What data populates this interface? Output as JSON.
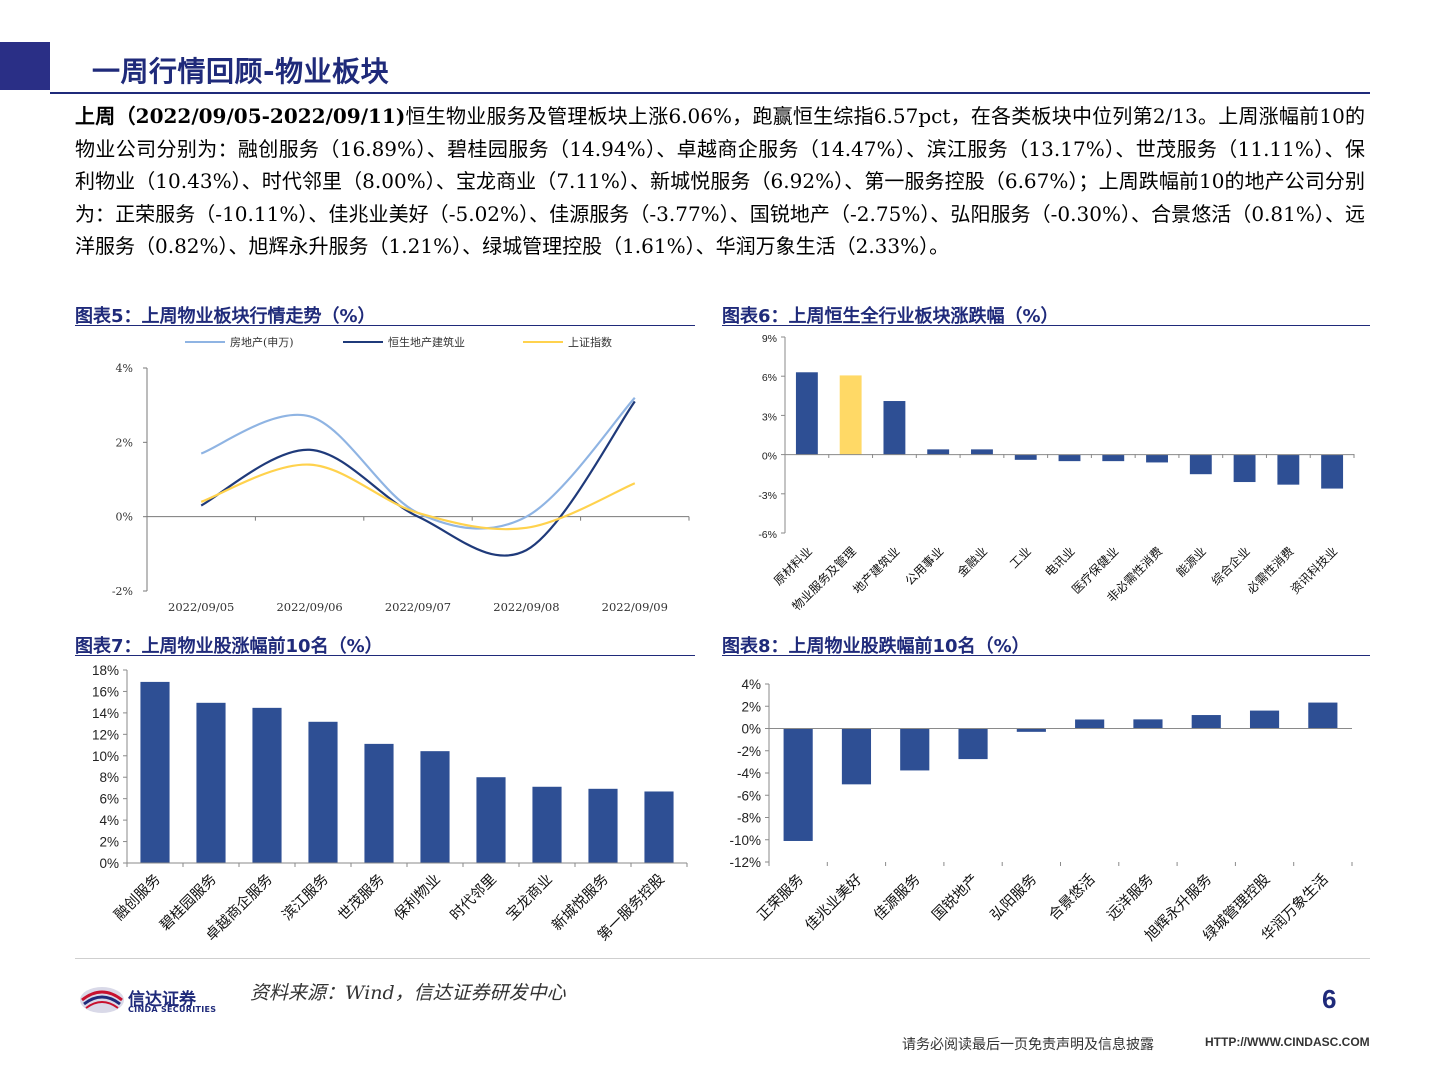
{
  "header": {
    "title": "一周行情回顾-物业板块"
  },
  "summary": {
    "lead": "上周（2022/09/05-2022/09/11)",
    "text": "恒生物业服务及管理板块上涨6.06%，跑赢恒生综指6.57pct，在各类板块中位列第2/13。上周涨幅前10的物业公司分别为：融创服务（16.89%）、碧桂园服务（14.94%）、卓越商企服务（14.47%）、滨江服务（13.17%）、世茂服务（11.11%）、保利物业（10.43%）、时代邻里（8.00%）、宝龙商业（7.11%）、新城悦服务（6.92%）、第一服务控股（6.67%）；上周跌幅前10的地产公司分别为：正荣服务（-10.11%）、佳兆业美好（-5.02%）、佳源服务（-3.77%）、国锐地产（-2.75%）、弘阳服务（-0.30%）、合景悠活（0.81%）、远洋服务（0.82%）、旭辉永升服务（1.21%）、绿城管理控股（1.61%）、华润万象生活（2.33%）。"
  },
  "figures": {
    "fig5_title": "图表5：上周物业板块行情走势（%）",
    "fig6_title": "图表6：上周恒生全行业板块涨跌幅（%）",
    "fig7_title": "图表7：上周物业股涨幅前10名（%）",
    "fig8_title": "图表8：上周物业股跌幅前10名（%）"
  },
  "colors": {
    "brand": "#1f2a7a",
    "bar": "#2e4f94",
    "bar_highlight": "#ffd966",
    "line_light": "#8fb4e3",
    "line_dark": "#1f3a7a",
    "line_yellow": "#ffd24d"
  },
  "chart_data": [
    {
      "id": "fig5",
      "type": "line",
      "x": [
        "2022/09/05",
        "2022/09/06",
        "2022/09/07",
        "2022/09/08",
        "2022/09/09"
      ],
      "series": [
        {
          "name": "房地产(申万)",
          "values": [
            1.7,
            2.7,
            0.1,
            0.0,
            3.2
          ]
        },
        {
          "name": "恒生地产建筑业",
          "values": [
            0.3,
            1.8,
            0.0,
            -0.9,
            3.1
          ]
        },
        {
          "name": "上证指数",
          "values": [
            0.4,
            1.4,
            0.1,
            -0.3,
            0.9
          ]
        }
      ],
      "yticks": [
        "4%",
        "2%",
        "0%",
        "-2%"
      ],
      "ylim": [
        -2,
        4
      ],
      "legend": "top"
    },
    {
      "id": "fig6",
      "type": "bar",
      "categories": [
        "原材料业",
        "物业服务及管理",
        "地产建筑业",
        "公用事业",
        "金融业",
        "工业",
        "电讯业",
        "医疗保健业",
        "非必需性消费",
        "能源业",
        "综合企业",
        "必需性消费",
        "资讯科技业"
      ],
      "values": [
        6.3,
        6.06,
        4.1,
        0.4,
        0.4,
        -0.4,
        -0.5,
        -0.5,
        -0.6,
        -1.5,
        -2.1,
        -2.3,
        -2.6
      ],
      "highlight_index": 1,
      "yticks": [
        "9%",
        "6%",
        "3%",
        "0%",
        "-3%",
        "-6%"
      ],
      "ylim": [
        -6,
        9
      ]
    },
    {
      "id": "fig7",
      "type": "bar",
      "categories": [
        "融创服务",
        "碧桂园服务",
        "卓越商企服务",
        "滨江服务",
        "世茂服务",
        "保利物业",
        "时代邻里",
        "宝龙商业",
        "新城悦服务",
        "第一服务控股"
      ],
      "values": [
        16.89,
        14.94,
        14.47,
        13.17,
        11.11,
        10.43,
        8.0,
        7.11,
        6.92,
        6.67
      ],
      "yticks": [
        "18%",
        "16%",
        "14%",
        "12%",
        "10%",
        "8%",
        "6%",
        "4%",
        "2%",
        "0%"
      ],
      "ylim": [
        0,
        18
      ]
    },
    {
      "id": "fig8",
      "type": "bar",
      "categories": [
        "正荣服务",
        "佳兆业美好",
        "佳源服务",
        "国锐地产",
        "弘阳服务",
        "合景悠活",
        "远洋服务",
        "旭辉永升服务",
        "绿城管理控股",
        "华润万象生活"
      ],
      "values": [
        -10.11,
        -5.02,
        -3.77,
        -2.75,
        -0.3,
        0.81,
        0.82,
        1.21,
        1.61,
        2.33
      ],
      "yticks": [
        "4%",
        "2%",
        "0%",
        "-2%",
        "-4%",
        "-6%",
        "-8%",
        "-10%",
        "-12%"
      ],
      "ylim": [
        -12,
        4
      ]
    }
  ],
  "footer": {
    "logo_name": "信达证券",
    "logo_sub": "CINDA SECURITIES",
    "source": "资料来源：Wind，信达证券研发中心",
    "page_number": "6",
    "disclaimer": "请务必阅读最后一页免责声明及信息披露",
    "url": "HTTP://WWW.CINDASC.COM"
  }
}
